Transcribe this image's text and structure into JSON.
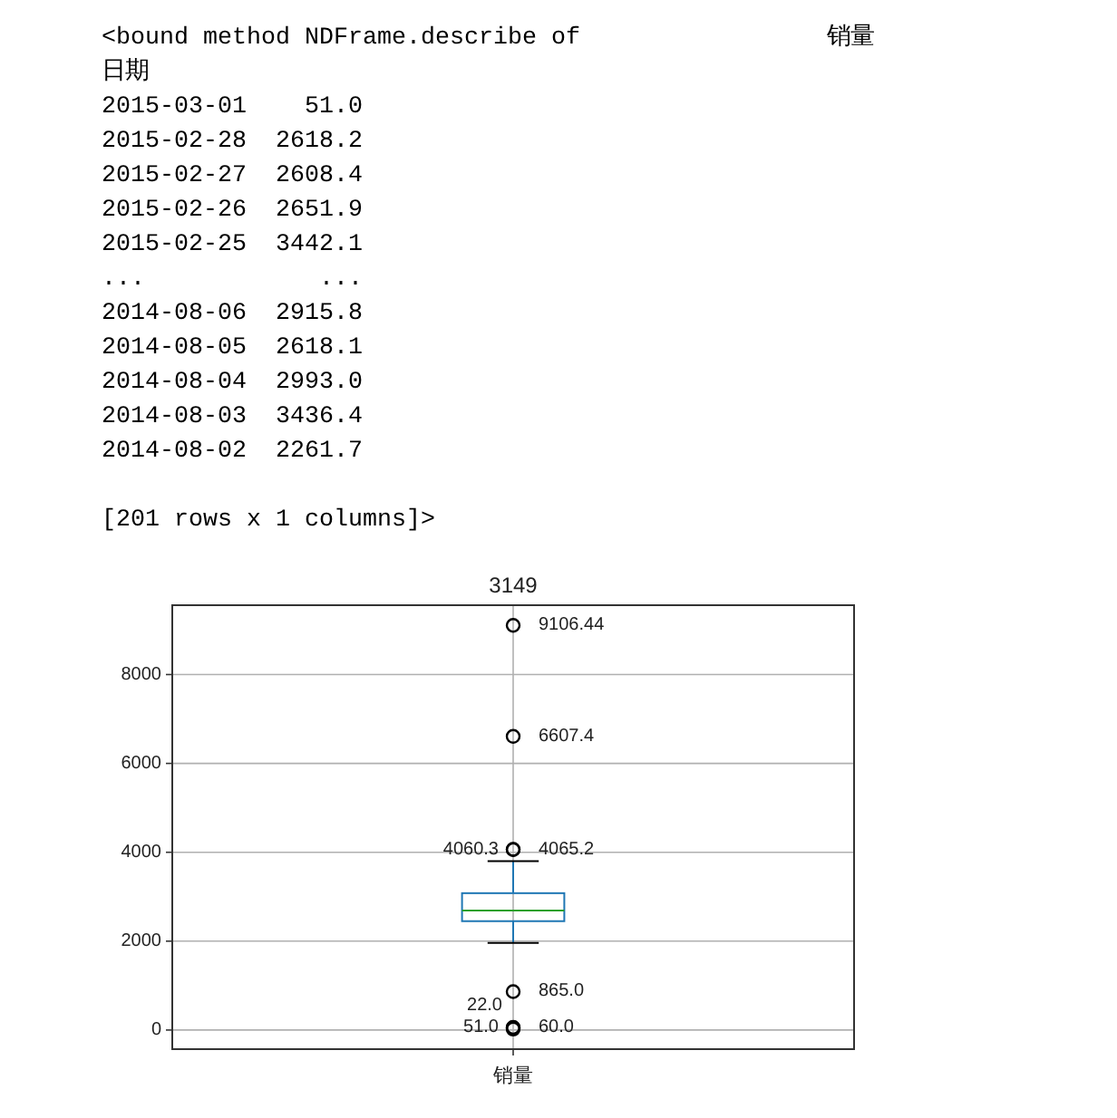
{
  "chart_data": {
    "type": "box",
    "title": "3149",
    "categories": [
      "销量"
    ],
    "series": [
      {
        "color": "#1f77b4",
        "boxes": [
          {
            "low": 1960,
            "q1": 2450,
            "median": 2690,
            "q3": 3080,
            "high": 3800
          }
        ]
      },
      {
        "type": "scatter",
        "color": "#000000",
        "marker": "circle",
        "x": [
          "销量",
          "销量",
          "销量",
          "销量",
          "销量",
          "销量",
          "销量",
          "销量"
        ],
        "values": [
          22.0,
          51.0,
          60.0,
          865.0,
          4060.3,
          4065.2,
          6607.4,
          9106.44
        ],
        "value_labels": [
          "22.0",
          "51.0",
          "60.0",
          "865.0",
          "4060.3",
          "4065.2",
          "6607.4",
          "9106.44"
        ]
      }
    ],
    "ylim": [
      -430,
      9560
    ],
    "yticks": [
      0,
      2000,
      4000,
      6000,
      8000
    ],
    "grid": true,
    "annotations": [
      "<bound method NDFrame.describe of                 销量",
      "日期",
      "2015-03-01    51.0",
      "2015-02-28  2618.2",
      "2015-02-27  2608.4",
      "2015-02-26  2651.9",
      "2015-02-25  3442.1",
      "...            ...",
      "2014-08-06  2915.8",
      "2014-08-05  2618.1",
      "2014-08-04  2993.0",
      "2014-08-03  3436.4",
      "2014-08-02  2261.7",
      "[201 rows x 1 columns]>"
    ]
  }
}
